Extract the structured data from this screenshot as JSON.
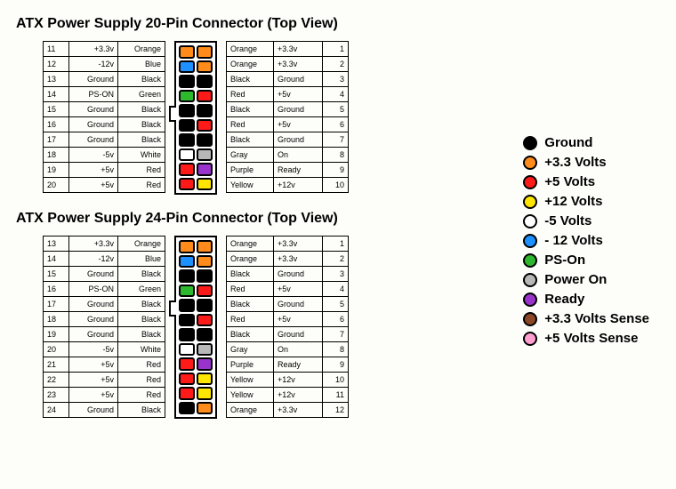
{
  "colors": {
    "Orange": "#ff8c1a",
    "Blue": "#1e90ff",
    "Black": "#000000",
    "Green": "#2eb82e",
    "White": "#ffffff",
    "Red": "#ff1a1a",
    "Gray": "#b8b8b8",
    "Purple": "#9933cc",
    "Yellow": "#ffe600",
    "Brown": "#8b4726",
    "Pink": "#ff9ecf"
  },
  "style": {
    "title_fontsize": 16,
    "table_fontsize": 9,
    "legend_fontsize": 15,
    "border_color": "#000000",
    "background_color": "#fdfdfa",
    "pinbox_w": 18,
    "pinbox_h": 14.5,
    "swatch_diameter": 16
  },
  "conn20": {
    "title": "ATX Power Supply 20-Pin Connector (Top View)",
    "notch_after_left_row": 4,
    "left": [
      {
        "pin": 11,
        "signal": "+3.3v",
        "color": "Orange"
      },
      {
        "pin": 12,
        "signal": "-12v",
        "color": "Blue"
      },
      {
        "pin": 13,
        "signal": "Ground",
        "color": "Black"
      },
      {
        "pin": 14,
        "signal": "PS-ON",
        "color": "Green"
      },
      {
        "pin": 15,
        "signal": "Ground",
        "color": "Black"
      },
      {
        "pin": 16,
        "signal": "Ground",
        "color": "Black"
      },
      {
        "pin": 17,
        "signal": "Ground",
        "color": "Black"
      },
      {
        "pin": 18,
        "signal": "-5v",
        "color": "White"
      },
      {
        "pin": 19,
        "signal": "+5v",
        "color": "Red"
      },
      {
        "pin": 20,
        "signal": "+5v",
        "color": "Red"
      }
    ],
    "right": [
      {
        "pin": 1,
        "signal": "+3.3v",
        "color": "Orange"
      },
      {
        "pin": 2,
        "signal": "+3.3v",
        "color": "Orange"
      },
      {
        "pin": 3,
        "signal": "Ground",
        "color": "Black"
      },
      {
        "pin": 4,
        "signal": "+5v",
        "color": "Red"
      },
      {
        "pin": 5,
        "signal": "Ground",
        "color": "Black"
      },
      {
        "pin": 6,
        "signal": "+5v",
        "color": "Red"
      },
      {
        "pin": 7,
        "signal": "Ground",
        "color": "Black"
      },
      {
        "pin": 8,
        "signal": "On",
        "color": "Gray"
      },
      {
        "pin": 9,
        "signal": "Ready",
        "color": "Purple"
      },
      {
        "pin": 10,
        "signal": "+12v",
        "color": "Yellow"
      }
    ]
  },
  "conn24": {
    "title": "ATX Power Supply 24-Pin Connector (Top View)",
    "notch_after_left_row": 4,
    "left": [
      {
        "pin": 13,
        "signal": "+3.3v",
        "color": "Orange"
      },
      {
        "pin": 14,
        "signal": "-12v",
        "color": "Blue"
      },
      {
        "pin": 15,
        "signal": "Ground",
        "color": "Black"
      },
      {
        "pin": 16,
        "signal": "PS-ON",
        "color": "Green"
      },
      {
        "pin": 17,
        "signal": "Ground",
        "color": "Black"
      },
      {
        "pin": 18,
        "signal": "Ground",
        "color": "Black"
      },
      {
        "pin": 19,
        "signal": "Ground",
        "color": "Black"
      },
      {
        "pin": 20,
        "signal": "-5v",
        "color": "White"
      },
      {
        "pin": 21,
        "signal": "+5v",
        "color": "Red"
      },
      {
        "pin": 22,
        "signal": "+5v",
        "color": "Red"
      },
      {
        "pin": 23,
        "signal": "+5v",
        "color": "Red"
      },
      {
        "pin": 24,
        "signal": "Ground",
        "color": "Black"
      }
    ],
    "right": [
      {
        "pin": 1,
        "signal": "+3.3v",
        "color": "Orange"
      },
      {
        "pin": 2,
        "signal": "+3.3v",
        "color": "Orange"
      },
      {
        "pin": 3,
        "signal": "Ground",
        "color": "Black"
      },
      {
        "pin": 4,
        "signal": "+5v",
        "color": "Red"
      },
      {
        "pin": 5,
        "signal": "Ground",
        "color": "Black"
      },
      {
        "pin": 6,
        "signal": "+5v",
        "color": "Red"
      },
      {
        "pin": 7,
        "signal": "Ground",
        "color": "Black"
      },
      {
        "pin": 8,
        "signal": "On",
        "color": "Gray"
      },
      {
        "pin": 9,
        "signal": "Ready",
        "color": "Purple"
      },
      {
        "pin": 10,
        "signal": "+12v",
        "color": "Yellow"
      },
      {
        "pin": 11,
        "signal": "+12v",
        "color": "Yellow"
      },
      {
        "pin": 12,
        "signal": "+3.3v",
        "color": "Orange"
      }
    ]
  },
  "legend": [
    {
      "color": "Black",
      "label": "Ground"
    },
    {
      "color": "Orange",
      "label": "+3.3 Volts"
    },
    {
      "color": "Red",
      "label": "+5 Volts"
    },
    {
      "color": "Yellow",
      "label": "+12 Volts"
    },
    {
      "color": "White",
      "label": "-5 Volts"
    },
    {
      "color": "Blue",
      "label": "- 12 Volts"
    },
    {
      "color": "Green",
      "label": "PS-On"
    },
    {
      "color": "Gray",
      "label": "Power On"
    },
    {
      "color": "Purple",
      "label": "Ready"
    },
    {
      "color": "Brown",
      "label": "+3.3 Volts Sense"
    },
    {
      "color": "Pink",
      "label": "+5 Volts Sense"
    }
  ]
}
